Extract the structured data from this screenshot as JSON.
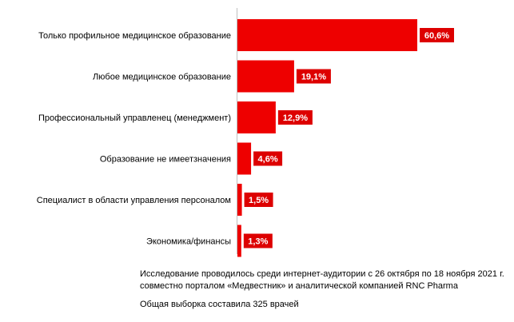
{
  "colors": {
    "bar": "#ee0000",
    "label_bg": "#dd0000",
    "axis": "#bfbfbf"
  },
  "chart_data": {
    "type": "bar",
    "orientation": "horizontal",
    "categories": [
      "Только профильное медицинское образование",
      "Любое медицинское образование",
      "Профессиональный управленец (менеджмент)",
      "Образование не имеетзначения",
      "Специалист в области управления персоналом",
      "Экономика/финансы"
    ],
    "values": [
      60.6,
      19.1,
      12.9,
      4.6,
      1.5,
      1.3
    ],
    "value_labels": [
      "60,6%",
      "19,1%",
      "12,9%",
      "4,6%",
      "1,5%",
      "1,3%"
    ],
    "title": "",
    "xlabel": "",
    "ylabel": "",
    "xlim": [
      0,
      60.6
    ],
    "grid": false,
    "legend": "none"
  },
  "footnotes": {
    "line1": "Исследование проводилось среди интернет-аудитории с 26 октября по 18 ноября 2021 г.",
    "line2": "совместно порталом «Медвестник» и аналитической компанией RNC Pharma",
    "line3": "Общая выборка составила 325 врачей"
  }
}
